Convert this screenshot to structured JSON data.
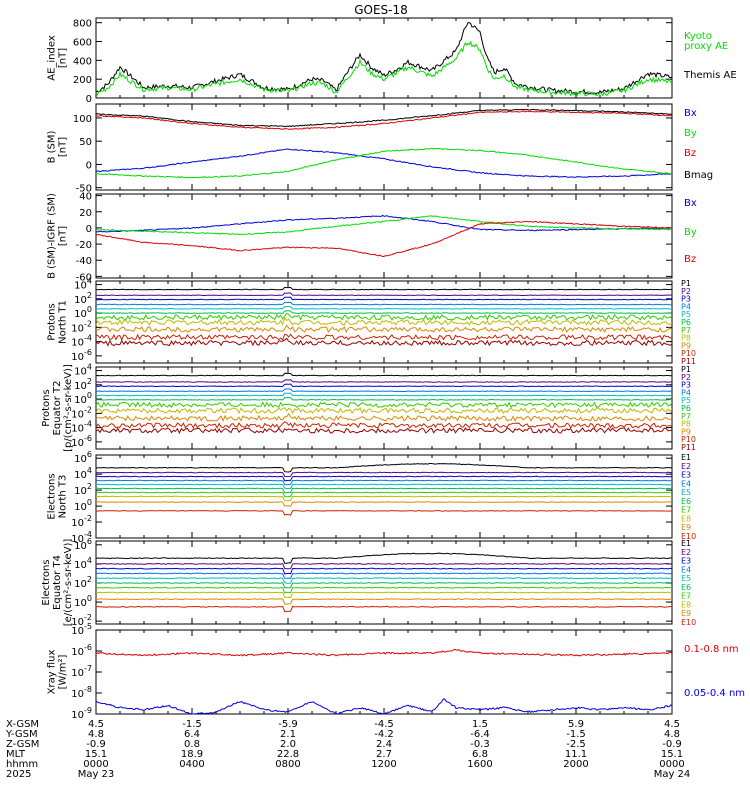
{
  "title": "GOES-18",
  "colors": {
    "black": "#000000",
    "red": "#dd0000",
    "green": "#00dd00",
    "blue": "#0000dd",
    "ch1": "#000000",
    "ch2": "#5a007a",
    "ch3": "#0000cc",
    "ch4": "#0077dd",
    "ch5": "#00bbbb",
    "ch6": "#00bb55",
    "ch7": "#33cc00",
    "ch8": "#bbbb00",
    "ch9": "#dd8800",
    "ch10": "#cc2200",
    "ch11": "#990000"
  },
  "chart_data": [
    {
      "type": "line",
      "ylabel": [
        "AE_index",
        "[nT]"
      ],
      "yticks": [
        0,
        200,
        400,
        600,
        800
      ],
      "ylim": [
        0,
        850
      ],
      "legend": [
        {
          "label": "Kyoto",
          "color": "green"
        },
        {
          "label": "proxy AE",
          "color": "green"
        },
        {
          "label": "Themis AE",
          "color": "black"
        }
      ],
      "series": [
        {
          "name": "Themis AE",
          "color": "black",
          "x": [
            0,
            0.5,
            1,
            1.5,
            2,
            2.5,
            3,
            4,
            5,
            6,
            7,
            8,
            9,
            9.5,
            10,
            10.5,
            11,
            11.5,
            12,
            12.5,
            13,
            14,
            15,
            15.5,
            16,
            16.3,
            16.6,
            17,
            17.5,
            18,
            19,
            20,
            21,
            22,
            23,
            24
          ],
          "y": [
            60,
            150,
            330,
            220,
            110,
            120,
            130,
            110,
            180,
            250,
            110,
            90,
            200,
            180,
            80,
            280,
            460,
            320,
            240,
            300,
            380,
            290,
            500,
            810,
            700,
            420,
            270,
            320,
            150,
            120,
            80,
            70,
            60,
            100,
            260,
            220
          ]
        },
        {
          "name": "Kyoto proxy AE",
          "color": "green",
          "x": [
            0,
            0.5,
            1,
            1.5,
            2,
            2.5,
            3,
            4,
            5,
            6,
            7,
            8,
            9,
            9.5,
            10,
            10.5,
            11,
            11.5,
            12,
            12.5,
            13,
            14,
            15,
            15.5,
            16,
            16.3,
            16.6,
            17,
            17.5,
            18,
            19,
            20,
            21,
            22,
            23,
            24
          ],
          "y": [
            40,
            110,
            250,
            170,
            90,
            100,
            110,
            90,
            150,
            200,
            90,
            70,
            160,
            150,
            60,
            220,
            380,
            260,
            200,
            260,
            330,
            230,
            420,
            600,
            520,
            320,
            200,
            240,
            110,
            90,
            60,
            50,
            40,
            80,
            200,
            170
          ]
        }
      ]
    },
    {
      "type": "line",
      "ylabel": [
        "B (SM)",
        "[nT]"
      ],
      "yticks": [
        -50,
        0,
        50,
        100
      ],
      "ylim": [
        -55,
        130
      ],
      "legend": [
        {
          "label": "Bx",
          "color": "blue"
        },
        {
          "label": "By",
          "color": "green"
        },
        {
          "label": "Bz",
          "color": "red"
        },
        {
          "label": "Bmag",
          "color": "black"
        }
      ],
      "series": [
        {
          "name": "Bx",
          "color": "blue",
          "x": [
            0,
            2,
            4,
            6,
            8,
            10,
            12,
            14,
            16,
            18,
            20,
            22,
            24
          ],
          "y": [
            -15,
            -8,
            5,
            18,
            33,
            25,
            12,
            -5,
            -18,
            -25,
            -27,
            -25,
            -20
          ]
        },
        {
          "name": "By",
          "color": "green",
          "x": [
            0,
            2,
            4,
            6,
            8,
            10,
            12,
            14,
            16,
            18,
            20,
            22,
            24
          ],
          "y": [
            -20,
            -25,
            -28,
            -25,
            -15,
            10,
            28,
            34,
            30,
            20,
            5,
            -10,
            -20
          ]
        },
        {
          "name": "Bz",
          "color": "red",
          "x": [
            0,
            2,
            4,
            6,
            8,
            10,
            12,
            14,
            16,
            18,
            20,
            22,
            24
          ],
          "y": [
            105,
            100,
            88,
            80,
            76,
            80,
            88,
            100,
            112,
            114,
            112,
            110,
            105
          ]
        },
        {
          "name": "Bmag",
          "color": "black",
          "x": [
            0,
            2,
            4,
            6,
            8,
            10,
            12,
            14,
            16,
            18,
            20,
            22,
            24
          ],
          "y": [
            108,
            104,
            92,
            84,
            82,
            88,
            95,
            105,
            116,
            118,
            116,
            113,
            108
          ]
        }
      ]
    },
    {
      "type": "line",
      "ylabel": [
        "B (SM)-IGRF (SM)",
        "[nT]"
      ],
      "yticks": [
        -60,
        -40,
        -20,
        0,
        20,
        40
      ],
      "ylim": [
        -62,
        42
      ],
      "legend": [
        {
          "label": "Bx",
          "color": "blue"
        },
        {
          "label": "By",
          "color": "green"
        },
        {
          "label": "Bz",
          "color": "red"
        }
      ],
      "series": [
        {
          "name": "Bx",
          "color": "blue",
          "x": [
            0,
            2,
            4,
            6,
            8,
            10,
            12,
            14,
            16,
            18,
            20,
            22,
            24
          ],
          "y": [
            -5,
            -3,
            0,
            5,
            10,
            12,
            15,
            8,
            -2,
            -3,
            -2,
            -1,
            0
          ]
        },
        {
          "name": "By",
          "color": "green",
          "x": [
            0,
            2,
            4,
            6,
            8,
            10,
            12,
            14,
            16,
            18,
            20,
            22,
            24
          ],
          "y": [
            -2,
            -4,
            -6,
            -8,
            -5,
            2,
            8,
            15,
            8,
            2,
            0,
            -1,
            -2
          ]
        },
        {
          "name": "Bz",
          "color": "red",
          "x": [
            0,
            2,
            4,
            6,
            8,
            10,
            12,
            14,
            16,
            18,
            20,
            22,
            24
          ],
          "y": [
            -8,
            -18,
            -22,
            -28,
            -24,
            -25,
            -35,
            -20,
            5,
            8,
            5,
            2,
            0
          ]
        }
      ]
    },
    {
      "type": "line",
      "log": true,
      "ylabel": [
        "Protons",
        "North T1"
      ],
      "yticks": [
        -6,
        -4,
        -2,
        0,
        2,
        4
      ],
      "ylim": [
        -7,
        4.5
      ],
      "legend": [
        "P1",
        "P2",
        "P3",
        "P4",
        "P5",
        "P6",
        "P7",
        "P8",
        "P9",
        "P10",
        "P11"
      ],
      "channels": [
        3.3,
        2.5,
        1.9,
        1.2,
        0.6,
        0,
        -0.6,
        -1.3,
        -2.3,
        -3.4,
        -4.2
      ]
    },
    {
      "type": "line",
      "log": true,
      "ylabel": [
        "Protons",
        "Equator T2",
        "[p/(cm²-s-sr-keV)]"
      ],
      "yticks": [
        -6,
        -4,
        -2,
        0,
        2,
        4
      ],
      "ylim": [
        -7,
        4.5
      ],
      "legend": [
        "P1",
        "P2",
        "P3",
        "P4",
        "P5",
        "P6",
        "P7",
        "P8",
        "P9",
        "P10",
        "P11"
      ],
      "channels": [
        3.3,
        2.4,
        1.8,
        1.1,
        0.5,
        -0.1,
        -0.8,
        -1.6,
        -2.7,
        -3.7,
        -4.4
      ]
    },
    {
      "type": "line",
      "log": true,
      "ylabel": [
        "Electrons",
        "North T3"
      ],
      "yticks": [
        -4,
        -2,
        0,
        2,
        4,
        6
      ],
      "ylim": [
        -4,
        6.4
      ],
      "legend": [
        "E1",
        "E2",
        "E3",
        "E4",
        "E5",
        "E6",
        "E7",
        "E8",
        "E9",
        "E10"
      ],
      "channels": [
        4.8,
        4.2,
        3.7,
        3.2,
        2.7,
        2.2,
        1.7,
        1.2,
        0.5,
        -0.6
      ]
    },
    {
      "type": "line",
      "log": true,
      "ylabel": [
        "Electrons",
        "Equator T4",
        "[e/(cm²-s-sr-keV)]"
      ],
      "yticks": [
        -2,
        0,
        2,
        4,
        6
      ],
      "ylim": [
        -2.3,
        6.4
      ],
      "legend": [
        "E1",
        "E2",
        "E3",
        "E4",
        "E5",
        "E6",
        "E7",
        "E8",
        "E9",
        "E10"
      ],
      "channels": [
        4.6,
        4.0,
        3.5,
        3.0,
        2.5,
        2.0,
        1.5,
        1.0,
        0.3,
        -0.5
      ]
    },
    {
      "type": "line",
      "log": true,
      "ylabel": [
        "Xray flux",
        "[W/m²]"
      ],
      "yticks": [
        -9,
        -8,
        -7,
        -6,
        -5
      ],
      "ylim": [
        -9,
        -5
      ],
      "legend": [
        {
          "label": "0.1-0.8 nm",
          "color": "red"
        },
        {
          "label": "0.05-0.4 nm",
          "color": "blue"
        }
      ],
      "series": [
        {
          "name": "0.1-0.8 nm",
          "color": "red",
          "x": [
            0,
            2,
            4,
            6,
            8,
            10,
            12,
            14,
            15,
            16,
            18,
            20,
            22,
            24
          ],
          "y": [
            -6.1,
            -6.2,
            -6.1,
            -6.2,
            -6.1,
            -6.2,
            -6.1,
            -6.1,
            -5.95,
            -6.1,
            -6.15,
            -6.2,
            -6.15,
            -6.1
          ]
        },
        {
          "name": "0.05-0.4 nm",
          "color": "blue",
          "x": [
            0,
            1,
            2,
            3,
            4,
            5,
            6,
            7,
            8,
            9,
            10,
            11,
            12,
            13,
            14,
            14.5,
            15,
            16,
            17,
            18,
            19,
            20,
            21,
            22,
            23,
            24
          ],
          "y": [
            -8.4,
            -8.7,
            -8.8,
            -8.6,
            -9,
            -8.9,
            -8.4,
            -8.8,
            -8.9,
            -8.4,
            -9,
            -8.7,
            -9,
            -8.6,
            -8.9,
            -8.3,
            -8.7,
            -8.8,
            -8.7,
            -8.9,
            -8.8,
            -8.7,
            -8.8,
            -8.7,
            -8.8,
            -8.6
          ]
        }
      ]
    }
  ],
  "x_labels": {
    "rows": [
      {
        "name": "X-GSM",
        "values": [
          "4.5",
          "-1.5",
          "-5.9",
          "-4.5",
          "1.5",
          "5.9",
          "4.5"
        ]
      },
      {
        "name": "Y-GSM",
        "values": [
          "4.8",
          "6.4",
          "2.1",
          "-4.2",
          "-6.4",
          "-1.5",
          "4.8"
        ]
      },
      {
        "name": "Z-GSM",
        "values": [
          "-0.9",
          "0.8",
          "2.0",
          "2.4",
          "-0.3",
          "-2.5",
          "-0.9"
        ]
      },
      {
        "name": "MLT",
        "values": [
          "15.1",
          "18.9",
          "22.8",
          "2.7",
          "6.8",
          "11.1",
          "15.1"
        ]
      },
      {
        "name": "hhmm",
        "values": [
          "0000",
          "0400",
          "0800",
          "1200",
          "1600",
          "2000",
          "0000"
        ]
      },
      {
        "name": "2025",
        "values": [
          "May 23",
          "",
          "",
          "",
          "",
          "",
          "May 24"
        ]
      }
    ]
  }
}
